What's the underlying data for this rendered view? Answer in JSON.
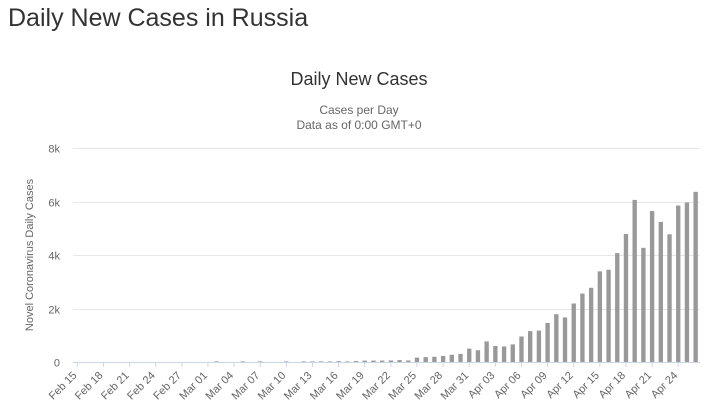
{
  "page": {
    "heading": "Daily New Cases in Russia"
  },
  "chart_data": {
    "type": "bar",
    "title": "Daily New Cases",
    "subtitle_lines": [
      "Cases per Day",
      "Data as of 0:00 GMT+0"
    ],
    "xlabel": "",
    "ylabel": "Novel Coronavirus Daily Cases",
    "ylim": [
      0,
      8000
    ],
    "yticks": [
      0,
      2000,
      4000,
      6000,
      8000
    ],
    "ytick_labels": [
      "0",
      "2k",
      "4k",
      "6k",
      "8k"
    ],
    "xtick_labels": [
      "Feb 15",
      "Feb 18",
      "Feb 21",
      "Feb 24",
      "Feb 27",
      "Mar 01",
      "Mar 04",
      "Mar 07",
      "Mar 10",
      "Mar 13",
      "Mar 16",
      "Mar 19",
      "Mar 22",
      "Mar 25",
      "Mar 28",
      "Mar 31",
      "Apr 03",
      "Apr 06",
      "Apr 09",
      "Apr 12",
      "Apr 15",
      "Apr 18",
      "Apr 21",
      "Apr 24"
    ],
    "grid": true,
    "legend": "none",
    "bar_color": "#999999",
    "grid_color": "#e6e6e6",
    "categories": [
      "Feb 15",
      "Feb 16",
      "Feb 17",
      "Feb 18",
      "Feb 19",
      "Feb 20",
      "Feb 21",
      "Feb 22",
      "Feb 23",
      "Feb 24",
      "Feb 25",
      "Feb 26",
      "Feb 27",
      "Feb 28",
      "Feb 29",
      "Mar 01",
      "Mar 02",
      "Mar 03",
      "Mar 04",
      "Mar 05",
      "Mar 06",
      "Mar 07",
      "Mar 08",
      "Mar 09",
      "Mar 10",
      "Mar 11",
      "Mar 12",
      "Mar 13",
      "Mar 14",
      "Mar 15",
      "Mar 16",
      "Mar 17",
      "Mar 18",
      "Mar 19",
      "Mar 20",
      "Mar 21",
      "Mar 22",
      "Mar 23",
      "Mar 24",
      "Mar 25",
      "Mar 26",
      "Mar 27",
      "Mar 28",
      "Mar 29",
      "Mar 30",
      "Mar 31",
      "Apr 01",
      "Apr 02",
      "Apr 03",
      "Apr 04",
      "Apr 05",
      "Apr 06",
      "Apr 07",
      "Apr 08",
      "Apr 09",
      "Apr 10",
      "Apr 11",
      "Apr 12",
      "Apr 13",
      "Apr 14",
      "Apr 15",
      "Apr 16",
      "Apr 17",
      "Apr 18",
      "Apr 19",
      "Apr 20",
      "Apr 21",
      "Apr 22",
      "Apr 23",
      "Apr 24",
      "Apr 25",
      "Apr 26"
    ],
    "values": [
      0,
      0,
      0,
      0,
      0,
      0,
      0,
      0,
      0,
      0,
      0,
      0,
      0,
      0,
      0,
      0,
      1,
      0,
      0,
      1,
      0,
      6,
      0,
      0,
      3,
      0,
      8,
      6,
      14,
      4,
      30,
      20,
      33,
      52,
      54,
      53,
      57,
      71,
      57,
      163,
      182,
      196,
      228,
      270,
      302,
      500,
      440,
      771,
      601,
      582,
      658,
      954,
      1154,
      1175,
      1459,
      1786,
      1667,
      2186,
      2558,
      2774,
      3388,
      3448,
      4070,
      4785,
      6060,
      4268,
      5642,
      5236,
      4774,
      5849,
      5966,
      6361
    ]
  }
}
